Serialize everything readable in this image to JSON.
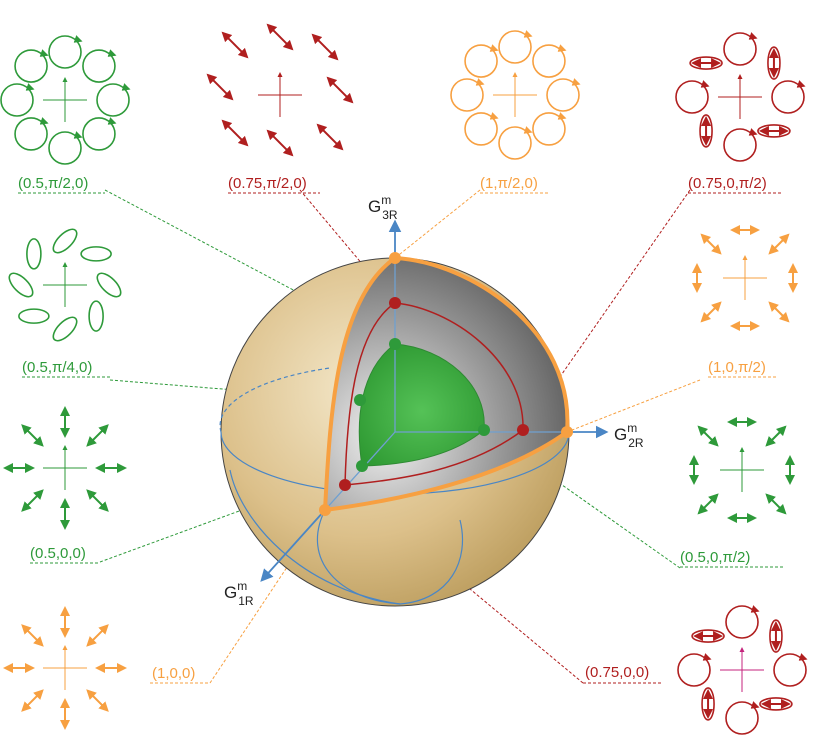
{
  "colors": {
    "green": "#2e9a3a",
    "red": "#b01f1f",
    "orange": "#f7a041",
    "blue": "#4a86c5",
    "sphere_tan": "#dcc08a",
    "cut_gray": "#8f8f8f",
    "magenta": "#c4237c"
  },
  "axes": {
    "g1": {
      "main": "G",
      "sup": "m",
      "sub": "1R"
    },
    "g2": {
      "main": "G",
      "sup": "m",
      "sub": "2R"
    },
    "g3": {
      "main": "G",
      "sup": "m",
      "sub": "3R"
    }
  },
  "labels": {
    "l_tl": "(0.5,π/2,0)",
    "l_tm": "(0.75,π/2,0)",
    "l_tr": "(1,π/2,0)",
    "l_trr": "(0.75,0,π/2)",
    "l_ml": "(0.5,π/4,0)",
    "l_mr": "(1,0,π/2)",
    "l_lm": "(0.5,0,0)",
    "l_rm": "(0.5,0,π/2)",
    "l_bl": "(1,0,0)",
    "l_br": "(0.75,0,0)"
  },
  "patterns": [
    {
      "id": "p_tl",
      "kind": "vortex",
      "color": "green"
    },
    {
      "id": "p_tm",
      "kind": "diagonal-arrows",
      "color": "red"
    },
    {
      "id": "p_tr",
      "kind": "vortex",
      "color": "orange"
    },
    {
      "id": "p_trr",
      "kind": "vortex-mixed",
      "color": "red"
    },
    {
      "id": "p_ml",
      "kind": "ellipse-tilted",
      "color": "green"
    },
    {
      "id": "p_mr",
      "kind": "mixed-arrows",
      "color": "orange"
    },
    {
      "id": "p_lm",
      "kind": "radial-arrows",
      "color": "green"
    },
    {
      "id": "p_rm",
      "kind": "mixed-arrows",
      "color": "green"
    },
    {
      "id": "p_bl",
      "kind": "radial-arrows",
      "color": "orange"
    },
    {
      "id": "p_br",
      "kind": "vortex-mixed",
      "color": "red"
    }
  ]
}
